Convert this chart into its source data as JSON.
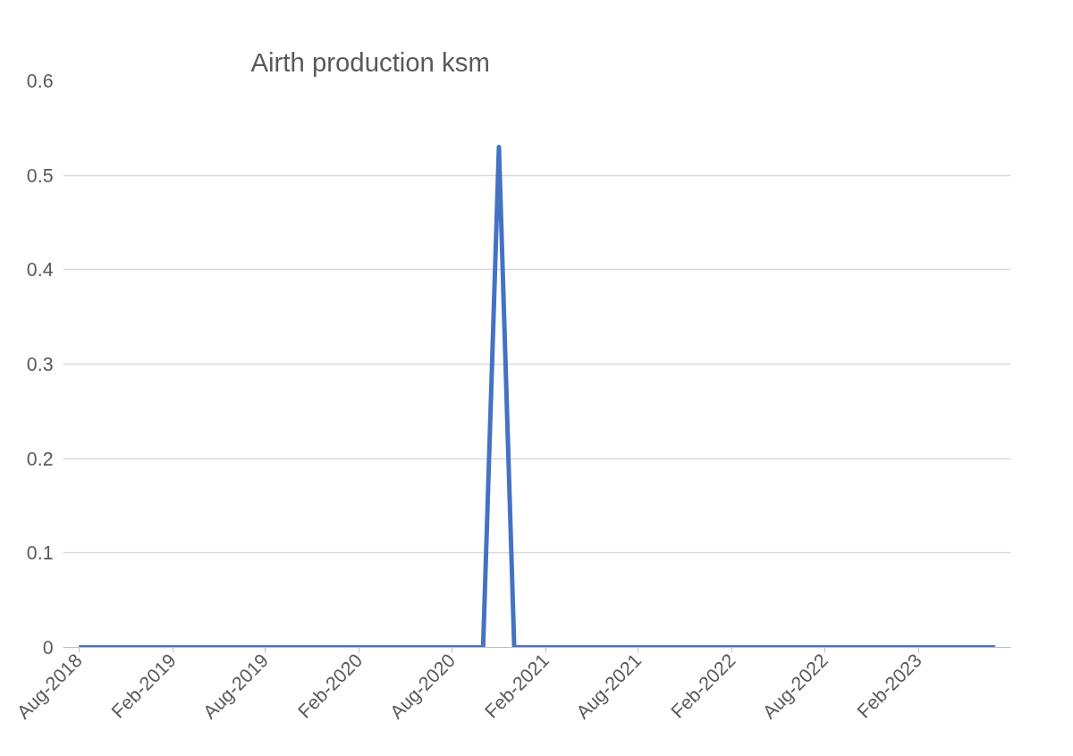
{
  "chart_data": {
    "type": "line",
    "title": "Airth production ksm",
    "x": [
      "2018-08",
      "2020-10",
      "2020-11",
      "2020-12",
      "2023-07"
    ],
    "series": [
      {
        "color": "#4472c4",
        "values": [
          0,
          0,
          0.53,
          0,
          0
        ]
      }
    ],
    "xlim": [
      "2018-07",
      "2023-08"
    ],
    "xticks": [
      {
        "value": "2018-08",
        "label": "Aug-2018"
      },
      {
        "value": "2019-02",
        "label": "Feb-2019"
      },
      {
        "value": "2019-08",
        "label": "Aug-2019"
      },
      {
        "value": "2020-02",
        "label": "Feb-2020"
      },
      {
        "value": "2020-08",
        "label": "Aug-2020"
      },
      {
        "value": "2021-02",
        "label": "Feb-2021"
      },
      {
        "value": "2021-08",
        "label": "Aug-2021"
      },
      {
        "value": "2022-02",
        "label": "Feb-2022"
      },
      {
        "value": "2022-08",
        "label": "Aug-2022"
      },
      {
        "value": "2023-02",
        "label": "Feb-2023"
      }
    ],
    "ylim": [
      0,
      0.6
    ],
    "yticks": [
      0,
      0.1,
      0.2,
      0.3,
      0.4,
      0.5,
      0.6
    ],
    "grid": "y",
    "marker": "none",
    "line_style": "solid"
  }
}
